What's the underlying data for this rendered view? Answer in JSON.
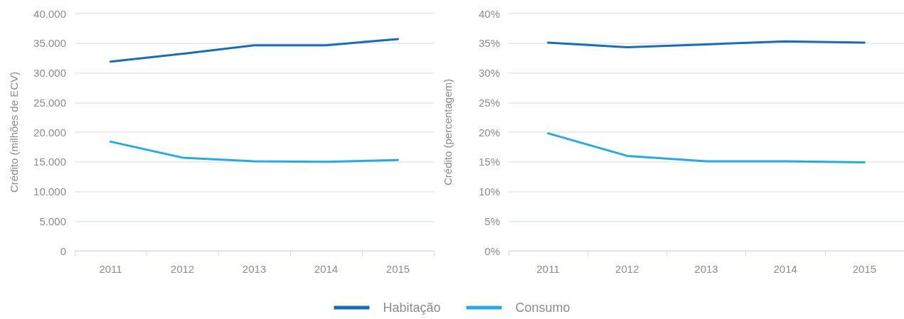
{
  "chart_data": [
    {
      "type": "line",
      "ylabel": "Crédito (milhões de ECV)",
      "categories": [
        "2011",
        "2012",
        "2013",
        "2014",
        "2015"
      ],
      "series": [
        {
          "color": "#1a6db5",
          "values": [
            31900,
            33200,
            34650,
            34650,
            35700
          ]
        },
        {
          "color": "#27aae1",
          "values": [
            18400,
            15700,
            15100,
            15000,
            15300
          ]
        }
      ],
      "ylim": [
        0,
        40000
      ],
      "yticks": [
        0,
        {
          "value": 5000,
          "label": "5.000"
        },
        {
          "value": 10000,
          "label": "10.000"
        },
        {
          "value": 15000,
          "label": "15.000"
        },
        {
          "value": 20000,
          "label": "20.000"
        },
        {
          "value": 25000,
          "label": "25.000"
        },
        {
          "value": 30000,
          "label": "30.000"
        },
        {
          "value": 35000,
          "label": "35.000"
        },
        {
          "value": 40000,
          "label": "40.000"
        }
      ],
      "grid": "y",
      "legend": false,
      "marker": "none"
    },
    {
      "type": "line",
      "ylabel": "Crédito (percentagem)",
      "categories": [
        "2011",
        "2012",
        "2013",
        "2014",
        "2015"
      ],
      "series": [
        {
          "name": "Habitação",
          "color": "#1a6db5",
          "values": [
            35.1,
            34.3,
            34.8,
            35.3,
            35.1
          ]
        },
        {
          "name": "Consumo",
          "color": "#27aae1",
          "values": [
            19.8,
            16.0,
            15.1,
            15.1,
            14.9
          ]
        }
      ],
      "ylim": [
        0,
        40
      ],
      "yticks": [
        {
          "value": 0,
          "label": "0%"
        },
        {
          "value": 5,
          "label": "5%"
        },
        {
          "value": 10,
          "label": "10%"
        },
        {
          "value": 15,
          "label": "15%"
        },
        {
          "value": 20,
          "label": "20%"
        },
        {
          "value": 25,
          "label": "25%"
        },
        {
          "value": 30,
          "label": "30%"
        },
        {
          "value": 35,
          "label": "35%"
        },
        {
          "value": 40,
          "label": "40%"
        }
      ],
      "grid": "y",
      "legend": "bottom",
      "marker": "none"
    }
  ]
}
